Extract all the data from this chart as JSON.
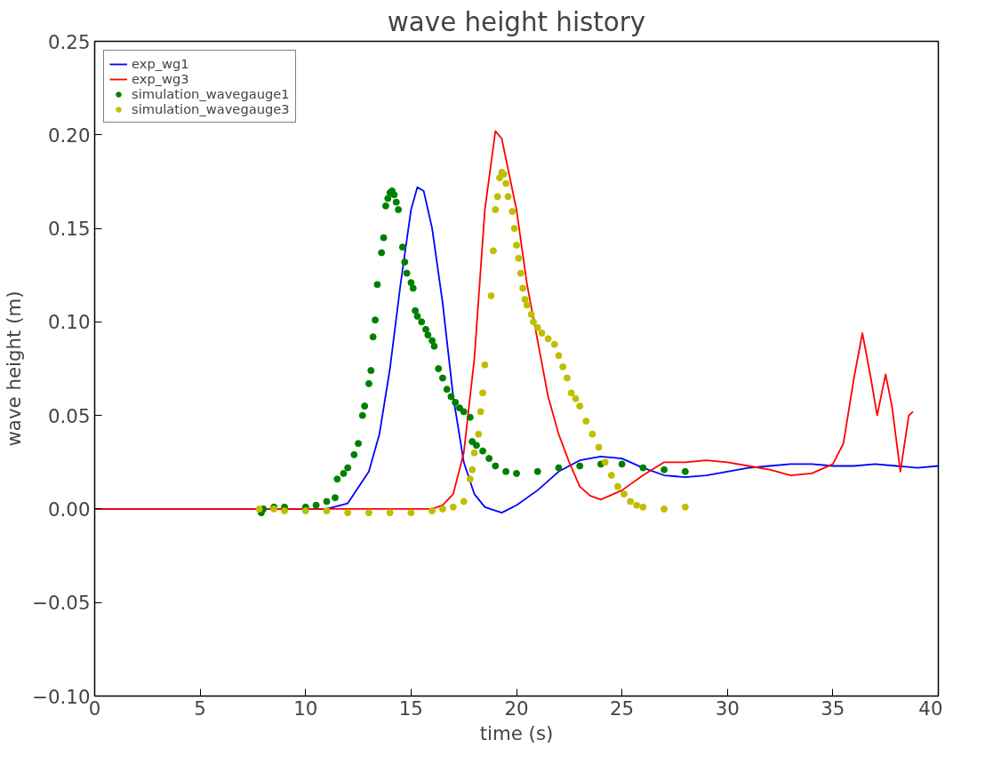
{
  "chart_data": {
    "type": "line",
    "title": "wave height history",
    "xlabel": "time (s)",
    "ylabel": "wave height (m)",
    "xlim": [
      0,
      40
    ],
    "ylim": [
      -0.1,
      0.25
    ],
    "xticks": [
      0,
      5,
      10,
      15,
      20,
      25,
      30,
      35,
      40
    ],
    "yticks": [
      {
        "value": -0.1,
        "label": "−0.10"
      },
      {
        "value": -0.05,
        "label": "−0.05"
      },
      {
        "value": 0,
        "label": "0.00"
      },
      {
        "value": 0.05,
        "label": "0.05"
      },
      {
        "value": 0.1,
        "label": "0.10"
      },
      {
        "value": 0.15,
        "label": "0.15"
      },
      {
        "value": 0.2,
        "label": "0.20"
      },
      {
        "value": 0.25,
        "label": "0.25"
      }
    ],
    "grid": false,
    "legend": "top left",
    "series": [
      {
        "name": "exp_wg1",
        "color": "#0000ff",
        "x": [
          0,
          11,
          12,
          13,
          13.5,
          14,
          14.5,
          15,
          15.3,
          15.6,
          16,
          16.5,
          17,
          17.5,
          18,
          18.5,
          19.3,
          20,
          21,
          22,
          23,
          24,
          25,
          26,
          27,
          28,
          29,
          30,
          31,
          32,
          33,
          34,
          35,
          36,
          37,
          38,
          39,
          40
        ],
        "values": [
          0,
          0,
          0.003,
          0.02,
          0.04,
          0.075,
          0.12,
          0.16,
          0.172,
          0.17,
          0.15,
          0.11,
          0.06,
          0.025,
          0.008,
          0.001,
          -0.002,
          0.002,
          0.01,
          0.02,
          0.026,
          0.028,
          0.027,
          0.022,
          0.018,
          0.017,
          0.018,
          0.02,
          0.022,
          0.023,
          0.024,
          0.024,
          0.023,
          0.023,
          0.024,
          0.023,
          0.022,
          0.023
        ]
      },
      {
        "name": "exp_wg3",
        "color": "#ff0000",
        "x": [
          0,
          16,
          16.5,
          17,
          17.5,
          18,
          18.5,
          19,
          19.3,
          20,
          20.5,
          21,
          21.5,
          22,
          22.5,
          23,
          23.5,
          24,
          25,
          26,
          27,
          28,
          29,
          30,
          31,
          32,
          33,
          34,
          35,
          35.5,
          36,
          36.4,
          36.8,
          37.1,
          37.5,
          37.8,
          38.2,
          38.6,
          38.8
        ],
        "values": [
          0,
          0,
          0.002,
          0.008,
          0.03,
          0.08,
          0.16,
          0.202,
          0.198,
          0.16,
          0.12,
          0.09,
          0.06,
          0.04,
          0.025,
          0.012,
          0.007,
          0.005,
          0.01,
          0.018,
          0.025,
          0.025,
          0.026,
          0.025,
          0.023,
          0.021,
          0.018,
          0.019,
          0.024,
          0.035,
          0.07,
          0.094,
          0.07,
          0.05,
          0.072,
          0.055,
          0.02,
          0.05,
          0.052
        ]
      },
      {
        "name": "simulation_wavegauge1",
        "type": "scatter",
        "marker": "circle",
        "color": "#008000",
        "x": [
          7.9,
          8,
          8.5,
          9,
          10,
          10.5,
          11,
          11.4,
          11.5,
          11.8,
          12,
          12.3,
          12.5,
          12.7,
          12.8,
          13,
          13.1,
          13.2,
          13.3,
          13.4,
          13.6,
          13.7,
          13.8,
          13.9,
          14,
          14.1,
          14.2,
          14.3,
          14.4,
          14.6,
          14.7,
          14.8,
          15,
          15.1,
          15.2,
          15.3,
          15.5,
          15.7,
          15.8,
          16,
          16.1,
          16.3,
          16.5,
          16.7,
          16.9,
          17.1,
          17.3,
          17.5,
          17.8,
          17.9,
          18.1,
          18.4,
          18.7,
          19,
          19.5,
          20,
          21,
          22,
          23,
          24,
          25,
          26,
          27,
          28
        ],
        "values": [
          -0.002,
          0,
          0.001,
          0.001,
          0.001,
          0.002,
          0.004,
          0.006,
          0.016,
          0.019,
          0.022,
          0.029,
          0.035,
          0.05,
          0.055,
          0.067,
          0.074,
          0.092,
          0.101,
          0.12,
          0.137,
          0.145,
          0.162,
          0.166,
          0.169,
          0.17,
          0.168,
          0.164,
          0.16,
          0.14,
          0.132,
          0.126,
          0.121,
          0.118,
          0.106,
          0.103,
          0.1,
          0.096,
          0.093,
          0.09,
          0.087,
          0.075,
          0.07,
          0.064,
          0.06,
          0.057,
          0.054,
          0.052,
          0.049,
          0.036,
          0.034,
          0.031,
          0.027,
          0.023,
          0.02,
          0.019,
          0.02,
          0.022,
          0.023,
          0.024,
          0.024,
          0.022,
          0.021,
          0.02
        ]
      },
      {
        "name": "simulation_wavegauge3",
        "type": "scatter",
        "marker": "circle",
        "color": "#bfbf00",
        "x": [
          7.8,
          8.5,
          9,
          10,
          11,
          12,
          13,
          14,
          15,
          16,
          16.5,
          17,
          17.5,
          17.8,
          17.9,
          18,
          18.2,
          18.3,
          18.4,
          18.5,
          18.8,
          18.9,
          19,
          19.1,
          19.2,
          19.3,
          19.4,
          19.5,
          19.6,
          19.8,
          19.9,
          20,
          20.1,
          20.2,
          20.3,
          20.4,
          20.5,
          20.7,
          20.8,
          21,
          21.2,
          21.5,
          21.8,
          22,
          22.2,
          22.4,
          22.6,
          22.8,
          23,
          23.3,
          23.6,
          23.9,
          24.2,
          24.5,
          24.8,
          25.1,
          25.4,
          25.7,
          26,
          27,
          28
        ],
        "values": [
          0,
          0,
          -0.001,
          -0.001,
          -0.001,
          -0.002,
          -0.002,
          -0.002,
          -0.002,
          -0.001,
          0,
          0.001,
          0.004,
          0.016,
          0.021,
          0.03,
          0.04,
          0.052,
          0.062,
          0.077,
          0.114,
          0.138,
          0.16,
          0.167,
          0.177,
          0.18,
          0.179,
          0.174,
          0.167,
          0.159,
          0.15,
          0.141,
          0.134,
          0.126,
          0.118,
          0.112,
          0.109,
          0.104,
          0.1,
          0.097,
          0.094,
          0.091,
          0.088,
          0.082,
          0.076,
          0.07,
          0.062,
          0.059,
          0.055,
          0.047,
          0.04,
          0.033,
          0.025,
          0.018,
          0.012,
          0.008,
          0.004,
          0.002,
          0.001,
          0,
          0.001
        ]
      }
    ]
  }
}
